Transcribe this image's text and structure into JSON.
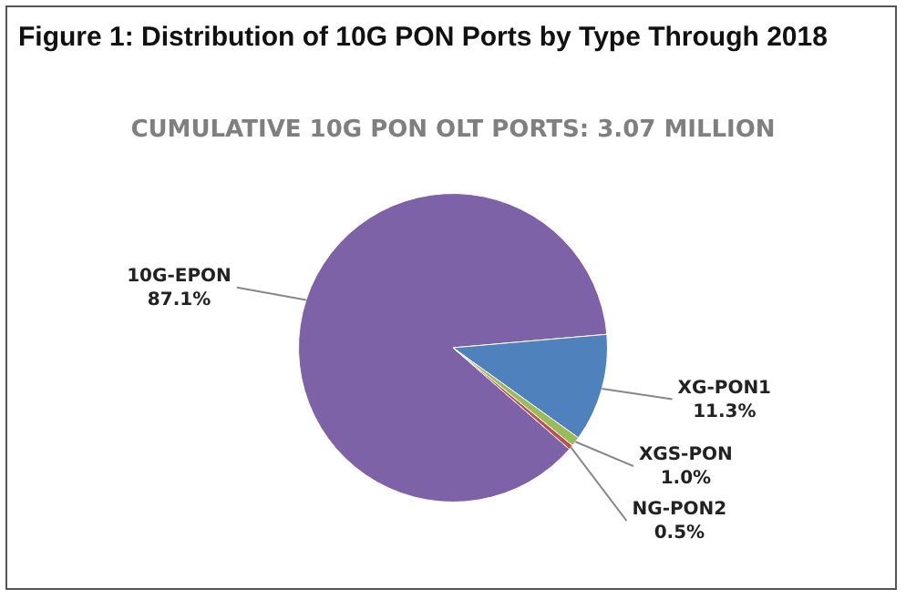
{
  "chart_data": {
    "type": "pie",
    "title": "Figure 1: Distribution of 10G PON Ports by Type Through 2018",
    "subtitle": "CUMULATIVE 10G PON OLT PORTS:  3.07 MILLION",
    "categories": [
      "10G-EPON",
      "XG-PON1",
      "XGS-PON",
      "NG-PON2"
    ],
    "values": [
      87.1,
      11.3,
      1.0,
      0.5
    ],
    "value_labels": [
      "87.1%",
      "11.3%",
      "1.0%",
      "0.5%"
    ],
    "colors": [
      "#7e62a8",
      "#4f81bd",
      "#9bbb59",
      "#c0504d"
    ],
    "legend": false
  }
}
